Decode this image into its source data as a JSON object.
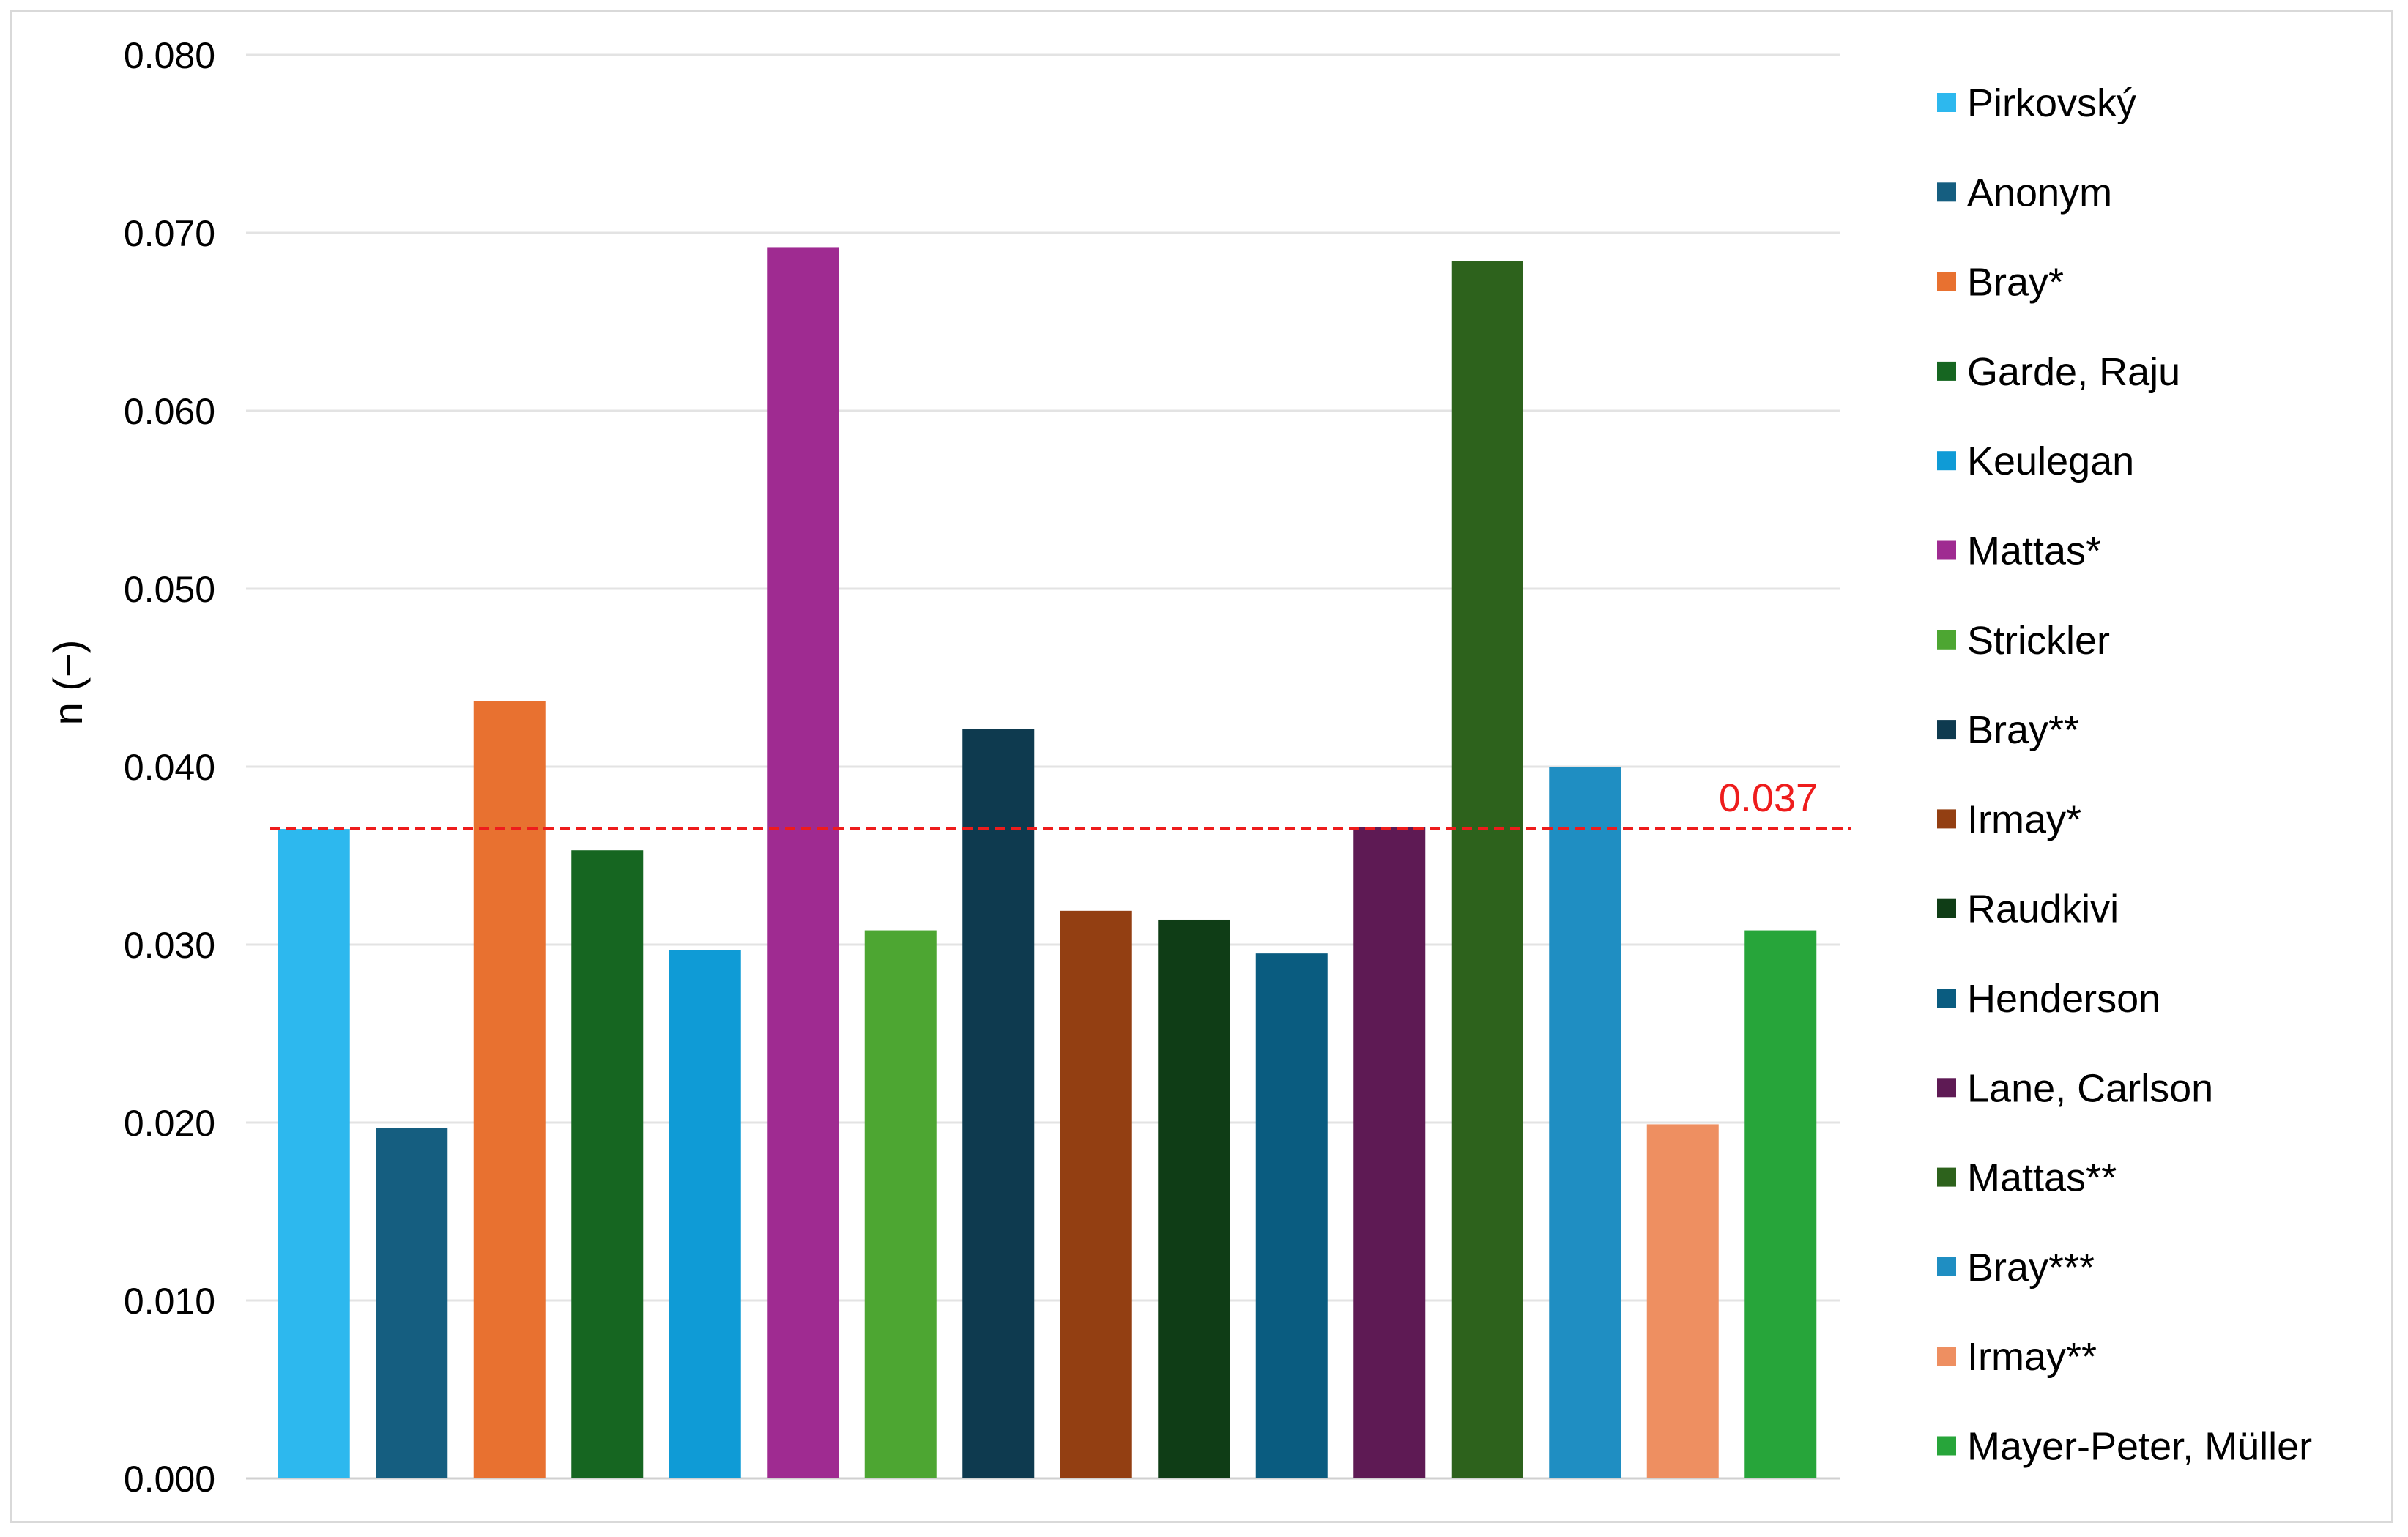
{
  "chart_data": {
    "type": "bar",
    "ylabel": "n (−)",
    "xlabel": "",
    "ylim": [
      0,
      0.08
    ],
    "yticks": [
      "0.000",
      "0.010",
      "0.020",
      "0.030",
      "0.040",
      "0.050",
      "0.060",
      "0.070",
      "0.080"
    ],
    "ytick_values": [
      0,
      0.01,
      0.02,
      0.03,
      0.04,
      0.05,
      0.06,
      0.07,
      0.08
    ],
    "grid": true,
    "legend_position": "right",
    "series": [
      {
        "name": "Pirkovský",
        "value": 0.0365,
        "color": "#2db8ee"
      },
      {
        "name": "Anonym",
        "value": 0.0197,
        "color": "#155e80"
      },
      {
        "name": "Bray*",
        "value": 0.0437,
        "color": "#e87130"
      },
      {
        "name": "Garde, Raju",
        "value": 0.0353,
        "color": "#166621"
      },
      {
        "name": "Keulegan",
        "value": 0.0297,
        "color": "#0f9bd6"
      },
      {
        "name": "Mattas*",
        "value": 0.0692,
        "color": "#9f2b91"
      },
      {
        "name": "Strickler",
        "value": 0.0308,
        "color": "#4da632"
      },
      {
        "name": "Bray**",
        "value": 0.0421,
        "color": "#0e3a4f"
      },
      {
        "name": "Irmay*",
        "value": 0.0319,
        "color": "#933f12"
      },
      {
        "name": "Raudkivi",
        "value": 0.0314,
        "color": "#0f3d16"
      },
      {
        "name": "Henderson",
        "value": 0.0295,
        "color": "#0a5c80"
      },
      {
        "name": "Lane, Carlson",
        "value": 0.0366,
        "color": "#5e1a54"
      },
      {
        "name": "Mattas**",
        "value": 0.0684,
        "color": "#2d621c"
      },
      {
        "name": "Bray***",
        "value": 0.04,
        "color": "#1f8ec2"
      },
      {
        "name": "Irmay**",
        "value": 0.0199,
        "color": "#ee8f61"
      },
      {
        "name": "Mayer-Peter, Müller",
        "value": 0.0308,
        "color": "#27a53a"
      }
    ],
    "reference_line": {
      "value": 0.0365,
      "label": "0.037",
      "color": "#ee1c1c",
      "style": "dashed"
    }
  }
}
